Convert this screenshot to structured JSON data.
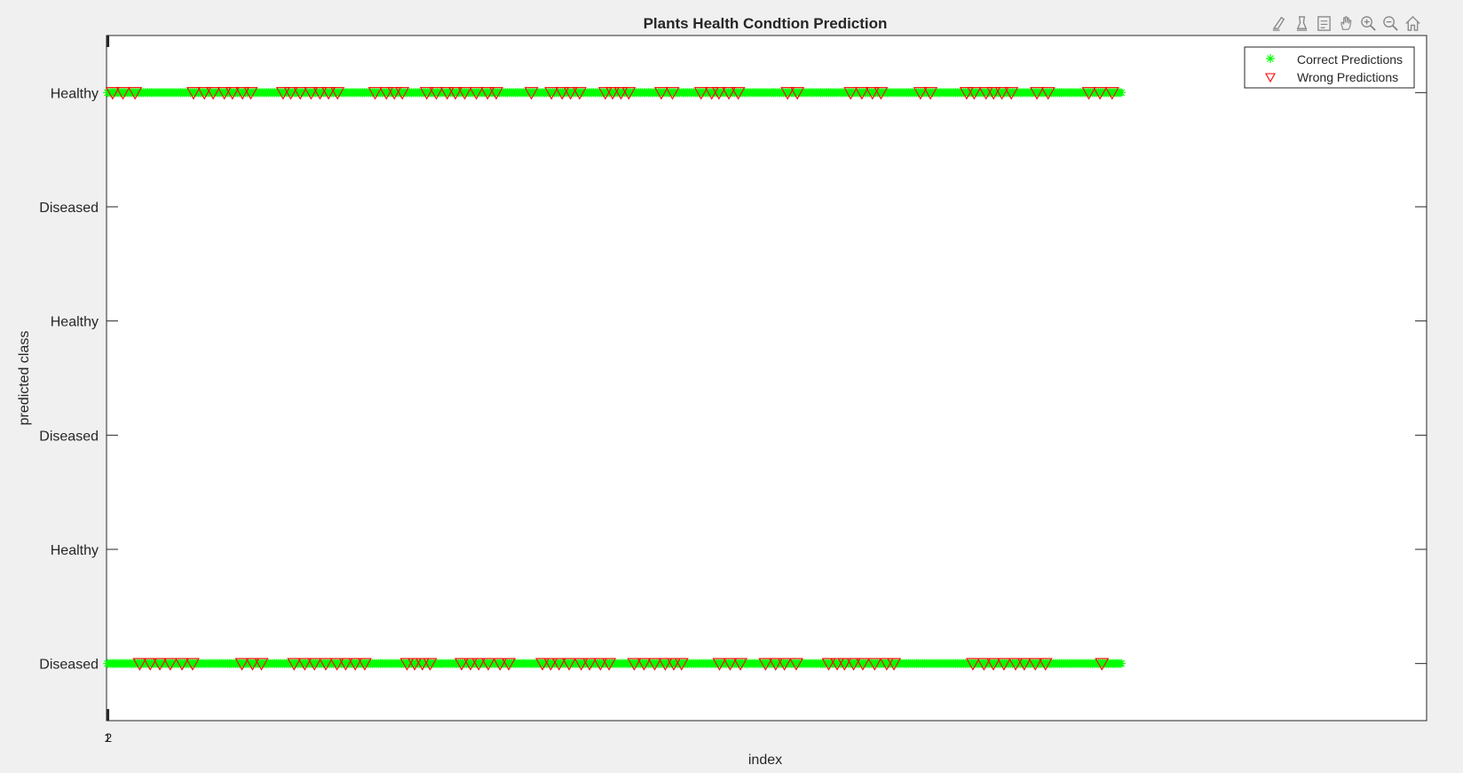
{
  "window": {
    "toolbar": [
      {
        "name": "brush-icon",
        "tooltip": "Brush"
      },
      {
        "name": "data-tips-icon",
        "tooltip": "Data Tips"
      },
      {
        "name": "export-icon",
        "tooltip": "Export"
      },
      {
        "name": "pan-icon",
        "tooltip": "Pan"
      },
      {
        "name": "zoom-in-icon",
        "tooltip": "Zoom In"
      },
      {
        "name": "zoom-out-icon",
        "tooltip": "Zoom Out"
      },
      {
        "name": "home-icon",
        "tooltip": "Restore View"
      }
    ]
  },
  "colors": {
    "correct": "#00ff00",
    "wrong": "#ff0000",
    "axes_bg": "#ffffff",
    "figure_bg": "#f0f0f0",
    "axis_line": "#262626"
  },
  "chart_data": {
    "type": "scatter",
    "title": "Plants Health Condtion Prediction",
    "xlabel": "index",
    "ylabel": "predicted class",
    "xlim": [
      0,
      1300
    ],
    "ylim": [
      0.5,
      6.5
    ],
    "x_tick_labels": [
      "1",
      "2"
    ],
    "y_tick_labels": [
      "Diseased",
      "Healthy",
      "Diseased",
      "Healthy",
      "Diseased",
      "Healthy"
    ],
    "grid": false,
    "legend_position": "top-right",
    "series": [
      {
        "name": "Correct Predictions",
        "marker": "asterisk",
        "color": "#00ff00",
        "rows": [
          {
            "y": 6,
            "x_range": [
              1,
              1000
            ]
          },
          {
            "y": 1,
            "x_range": [
              1,
              1000
            ]
          }
        ]
      },
      {
        "name": "Wrong Predictions",
        "marker": "triangle-down",
        "color": "#ff0000",
        "rows": [
          {
            "y": 6,
            "x_range": [
              1,
              1000
            ]
          },
          {
            "y": 1,
            "x_range": [
              1,
              1000
            ]
          }
        ]
      }
    ]
  }
}
